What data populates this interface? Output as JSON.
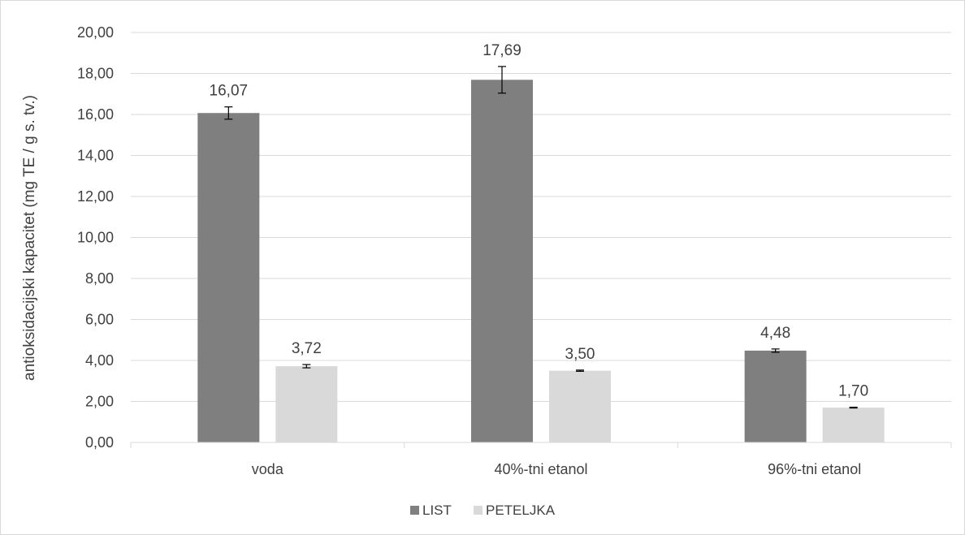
{
  "chart_data": {
    "type": "bar",
    "title": "",
    "xlabel": "",
    "ylabel": "antioksidacijski kapacitet  (mg TE / g s. tv.)",
    "categories": [
      "voda",
      "40%-tni etanol",
      "96%-tni etanol"
    ],
    "series": [
      {
        "name": "LIST",
        "color": "#7f7f7f",
        "values": [
          16.07,
          17.69,
          4.48
        ],
        "labels": [
          "16,07",
          "17,69",
          "4,48"
        ],
        "errors": [
          0.3,
          0.65,
          0.08
        ]
      },
      {
        "name": "PETELJKA",
        "color": "#d9d9d9",
        "values": [
          3.72,
          3.5,
          1.7
        ],
        "labels": [
          "3,72",
          "3,50",
          "1,70"
        ],
        "errors": [
          0.08,
          0.03,
          0.02
        ]
      }
    ],
    "ylim": [
      0,
      20
    ],
    "yticks": [
      0,
      2,
      4,
      6,
      8,
      10,
      12,
      14,
      16,
      18,
      20
    ],
    "ytick_labels": [
      "0,00",
      "2,00",
      "4,00",
      "6,00",
      "8,00",
      "10,00",
      "12,00",
      "14,00",
      "16,00",
      "18,00",
      "20,00"
    ],
    "grid": true,
    "legend_position": "bottom"
  }
}
